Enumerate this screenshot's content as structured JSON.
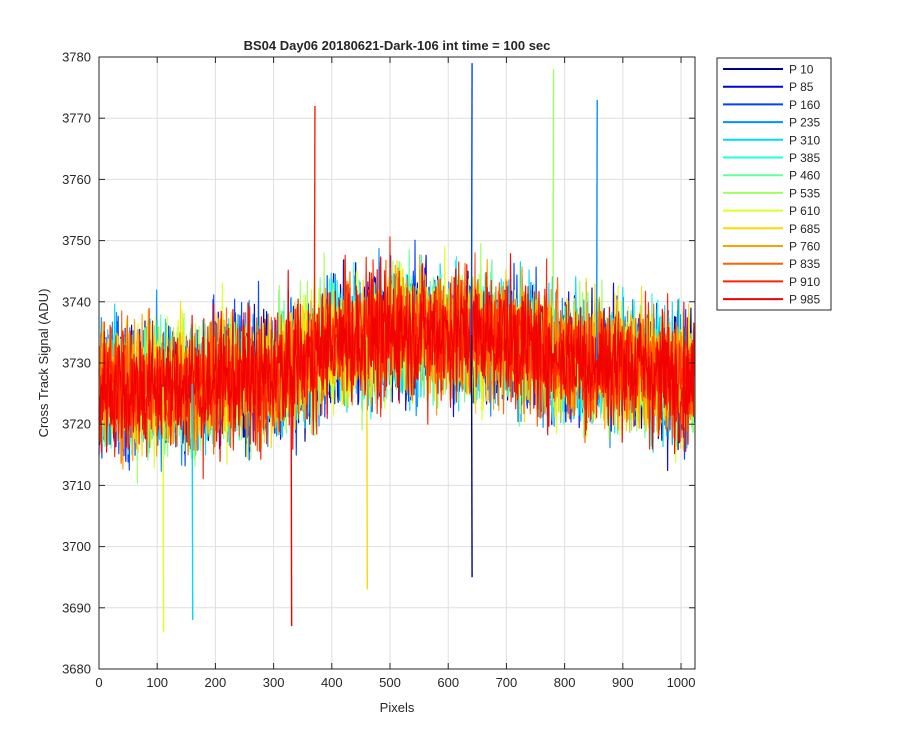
{
  "chart_data": {
    "type": "line",
    "title": "BS04 Day06 20180621-Dark-106 int time = 100 sec",
    "xlabel": "Pixels",
    "ylabel": "Cross Track Signal (ADU)",
    "xlim": [
      0,
      1024
    ],
    "ylim": [
      3680,
      3780
    ],
    "xticks": [
      0,
      100,
      200,
      300,
      400,
      500,
      600,
      700,
      800,
      900,
      1000
    ],
    "yticks": [
      3680,
      3690,
      3700,
      3710,
      3720,
      3730,
      3740,
      3750,
      3760,
      3770,
      3780
    ],
    "grid": true,
    "legend_position": "outside-top-right",
    "x_points": 1024,
    "series": [
      {
        "name": "P 10",
        "color": "#00008f",
        "mean": 3727,
        "amp": 9
      },
      {
        "name": "P 85",
        "color": "#0000e0",
        "mean": 3727,
        "amp": 9
      },
      {
        "name": "P 160",
        "color": "#0040ff",
        "mean": 3727,
        "amp": 9
      },
      {
        "name": "P 235",
        "color": "#0090ff",
        "mean": 3727,
        "amp": 9
      },
      {
        "name": "P 310",
        "color": "#00d8ff",
        "mean": 3727,
        "amp": 9
      },
      {
        "name": "P 385",
        "color": "#20ffe0",
        "mean": 3727,
        "amp": 9
      },
      {
        "name": "P 460",
        "color": "#60ffa0",
        "mean": 3727,
        "amp": 9
      },
      {
        "name": "P 535",
        "color": "#a0ff60",
        "mean": 3727,
        "amp": 9
      },
      {
        "name": "P 610",
        "color": "#e0ff20",
        "mean": 3727,
        "amp": 9
      },
      {
        "name": "P 685",
        "color": "#ffd800",
        "mean": 3727,
        "amp": 9
      },
      {
        "name": "P 760",
        "color": "#ffa000",
        "mean": 3727,
        "amp": 9
      },
      {
        "name": "P 835",
        "color": "#ff6000",
        "mean": 3727,
        "amp": 9
      },
      {
        "name": "P 910",
        "color": "#ff2000",
        "mean": 3727,
        "amp": 9
      },
      {
        "name": "P 985",
        "color": "#f00000",
        "mean": 3727,
        "amp": 9
      }
    ],
    "trend": {
      "x": [
        0,
        100,
        200,
        300,
        400,
        500,
        600,
        700,
        800,
        900,
        1024
      ],
      "y": [
        3726,
        3726,
        3727,
        3728,
        3733,
        3735,
        3735,
        3734,
        3731,
        3730,
        3727
      ]
    },
    "notable_values": [
      {
        "x": 640,
        "y": 3779
      },
      {
        "x": 780,
        "y": 3778
      },
      {
        "x": 370,
        "y": 3772
      },
      {
        "x": 855,
        "y": 3773
      },
      {
        "x": 110,
        "y": 3686
      },
      {
        "x": 330,
        "y": 3687
      },
      {
        "x": 160,
        "y": 3688
      },
      {
        "x": 460,
        "y": 3693
      },
      {
        "x": 640,
        "y": 3695
      }
    ]
  }
}
